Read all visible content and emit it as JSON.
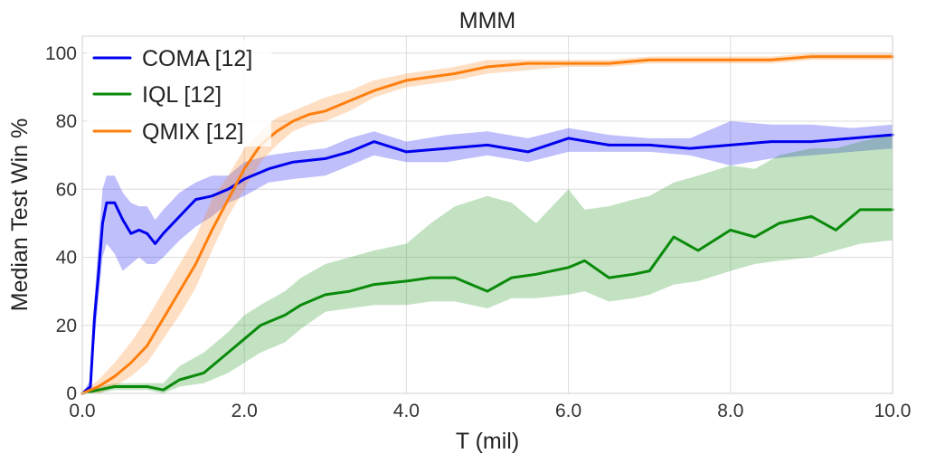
{
  "chart_data": {
    "type": "line",
    "title": "MMM",
    "xlabel": "T (mil)",
    "ylabel": "Median Test Win %",
    "xlim": [
      0,
      10
    ],
    "ylim": [
      0,
      105
    ],
    "xticks": [
      0,
      2,
      4,
      6,
      8,
      10
    ],
    "xtick_labels": [
      "0.0",
      "2.0",
      "4.0",
      "6.0",
      "8.0",
      "10.0"
    ],
    "yticks": [
      0,
      20,
      40,
      60,
      80,
      100
    ],
    "ytick_labels": [
      "0",
      "20",
      "40",
      "60",
      "80",
      "100"
    ],
    "grid": true,
    "legend_position": "top-left",
    "series": [
      {
        "name": "COMA [12]",
        "color": "#0000ee",
        "x": [
          0,
          0.1,
          0.15,
          0.2,
          0.25,
          0.3,
          0.4,
          0.5,
          0.6,
          0.7,
          0.8,
          0.9,
          1.0,
          1.2,
          1.4,
          1.6,
          1.8,
          2.0,
          2.3,
          2.6,
          3.0,
          3.3,
          3.6,
          4.0,
          4.5,
          5.0,
          5.5,
          6.0,
          6.5,
          7.0,
          7.5,
          8.0,
          8.5,
          9.0,
          9.5,
          10.0
        ],
        "y": [
          0,
          2,
          22,
          35,
          50,
          56,
          56,
          51,
          47,
          48,
          47,
          44,
          47,
          52,
          57,
          58,
          60,
          63,
          66,
          68,
          69,
          71,
          74,
          71,
          72,
          73,
          71,
          75,
          73,
          73,
          72,
          73,
          74,
          74,
          75,
          76
        ],
        "lower": [
          0,
          0,
          15,
          28,
          40,
          44,
          41,
          36,
          38,
          40,
          38,
          38,
          40,
          45,
          49,
          52,
          56,
          58,
          62,
          63,
          64,
          67,
          70,
          68,
          68,
          70,
          68,
          71,
          71,
          71,
          70,
          67,
          69,
          70,
          71,
          72
        ],
        "upper": [
          0,
          4,
          28,
          44,
          60,
          64,
          64,
          59,
          56,
          55,
          55,
          51,
          54,
          59,
          62,
          64,
          64,
          68,
          70,
          71,
          72,
          75,
          77,
          74,
          76,
          77,
          75,
          78,
          76,
          75,
          75,
          80,
          79,
          79,
          78,
          79
        ]
      },
      {
        "name": "IQL [12]",
        "color": "#0a8a0a",
        "x": [
          0,
          0.2,
          0.4,
          0.6,
          0.8,
          1.0,
          1.2,
          1.5,
          1.8,
          2.0,
          2.2,
          2.5,
          2.7,
          3.0,
          3.3,
          3.6,
          4.0,
          4.3,
          4.6,
          5.0,
          5.3,
          5.6,
          6.0,
          6.2,
          6.5,
          6.8,
          7.0,
          7.3,
          7.6,
          8.0,
          8.3,
          8.6,
          9.0,
          9.3,
          9.6,
          10.0
        ],
        "y": [
          0,
          1,
          2,
          2,
          2,
          1,
          4,
          6,
          12,
          16,
          20,
          23,
          26,
          29,
          30,
          32,
          33,
          34,
          34,
          30,
          34,
          35,
          37,
          39,
          34,
          35,
          36,
          46,
          42,
          48,
          46,
          50,
          52,
          48,
          54,
          54
        ],
        "lower": [
          0,
          0,
          1,
          1,
          1,
          0,
          2,
          3,
          6,
          9,
          12,
          15,
          19,
          24,
          25,
          26,
          26,
          27,
          27,
          25,
          28,
          28,
          29,
          30,
          27,
          28,
          29,
          32,
          33,
          36,
          38,
          39,
          40,
          42,
          44,
          45
        ],
        "upper": [
          0,
          2,
          3,
          3,
          3,
          3,
          8,
          12,
          18,
          23,
          26,
          30,
          34,
          38,
          40,
          42,
          44,
          50,
          55,
          58,
          56,
          50,
          60,
          54,
          55,
          57,
          58,
          62,
          64,
          67,
          66,
          70,
          72,
          72,
          74,
          76
        ]
      },
      {
        "name": "QMIX [12]",
        "color": "#ff7f0e",
        "x": [
          0,
          0.2,
          0.4,
          0.6,
          0.8,
          1.0,
          1.2,
          1.4,
          1.6,
          1.8,
          2.0,
          2.2,
          2.4,
          2.6,
          2.8,
          3.0,
          3.3,
          3.6,
          4.0,
          4.3,
          4.6,
          5.0,
          5.5,
          6.0,
          6.5,
          7.0,
          7.5,
          8.0,
          8.5,
          9.0,
          9.5,
          10.0
        ],
        "y": [
          0,
          2,
          5,
          9,
          14,
          22,
          30,
          38,
          48,
          57,
          66,
          73,
          77,
          80,
          82,
          83,
          86,
          89,
          92,
          93,
          94,
          96,
          97,
          97,
          97,
          98,
          98,
          98,
          98,
          99,
          99,
          99
        ],
        "lower": [
          0,
          0,
          2,
          5,
          9,
          16,
          23,
          31,
          42,
          52,
          60,
          68,
          73,
          77,
          79,
          80,
          83,
          87,
          90,
          91,
          92,
          94,
          95,
          96,
          96,
          97,
          97,
          97,
          97,
          98,
          98,
          98
        ],
        "upper": [
          0,
          4,
          9,
          15,
          22,
          30,
          38,
          46,
          57,
          64,
          72,
          77,
          81,
          83,
          85,
          87,
          89,
          92,
          94,
          95,
          96,
          98,
          98,
          98,
          98,
          99,
          99,
          99,
          99,
          100,
          100,
          100
        ]
      }
    ]
  }
}
